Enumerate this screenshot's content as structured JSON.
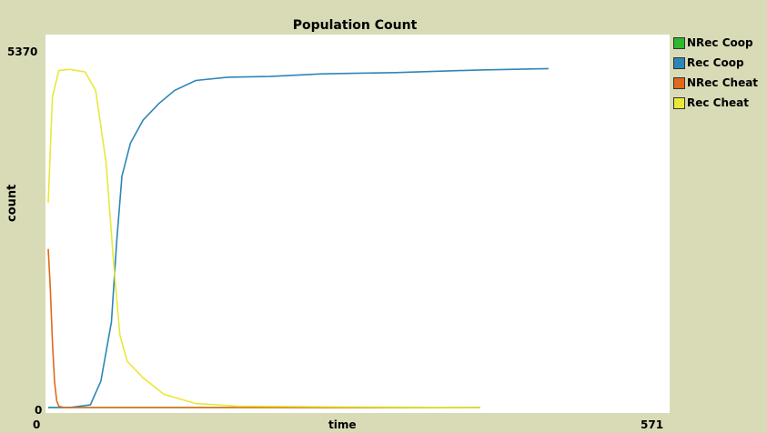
{
  "chart_data": {
    "type": "line",
    "title": "Population Count",
    "xlabel": "time",
    "ylabel": "count",
    "xlim": [
      0,
      571
    ],
    "ylim": [
      0,
      5370
    ],
    "x_tick_labels": [
      "0",
      "571"
    ],
    "y_tick_labels": [
      "0",
      "5370"
    ],
    "grid": false,
    "legend_position": "right",
    "series": [
      {
        "name": "NRec Coop",
        "color": "#2db82d",
        "points": [
          [
            0,
            0
          ],
          [
            60,
            0
          ],
          [
            300,
            0
          ],
          [
            410,
            0
          ]
        ]
      },
      {
        "name": "Rec Coop",
        "color": "#2e86b8",
        "points": [
          [
            0,
            0
          ],
          [
            20,
            0
          ],
          [
            40,
            40
          ],
          [
            50,
            400
          ],
          [
            60,
            1300
          ],
          [
            65,
            2500
          ],
          [
            70,
            3500
          ],
          [
            78,
            4000
          ],
          [
            90,
            4350
          ],
          [
            105,
            4600
          ],
          [
            120,
            4800
          ],
          [
            140,
            4950
          ],
          [
            170,
            5000
          ],
          [
            210,
            5010
          ],
          [
            260,
            5050
          ],
          [
            330,
            5070
          ],
          [
            410,
            5110
          ],
          [
            475,
            5130
          ]
        ]
      },
      {
        "name": "NRec Cheat",
        "color": "#e06a1c",
        "points": [
          [
            0,
            2400
          ],
          [
            2,
            1800
          ],
          [
            4,
            1000
          ],
          [
            6,
            400
          ],
          [
            8,
            100
          ],
          [
            10,
            20
          ],
          [
            15,
            0
          ],
          [
            410,
            0
          ]
        ]
      },
      {
        "name": "Rec Cheat",
        "color": "#e8e83a",
        "points": [
          [
            0,
            3100
          ],
          [
            4,
            4700
          ],
          [
            10,
            5100
          ],
          [
            20,
            5120
          ],
          [
            35,
            5080
          ],
          [
            45,
            4800
          ],
          [
            55,
            3700
          ],
          [
            62,
            2200
          ],
          [
            68,
            1100
          ],
          [
            75,
            700
          ],
          [
            90,
            450
          ],
          [
            110,
            200
          ],
          [
            140,
            60
          ],
          [
            180,
            20
          ],
          [
            280,
            10
          ],
          [
            410,
            0
          ]
        ]
      }
    ]
  }
}
